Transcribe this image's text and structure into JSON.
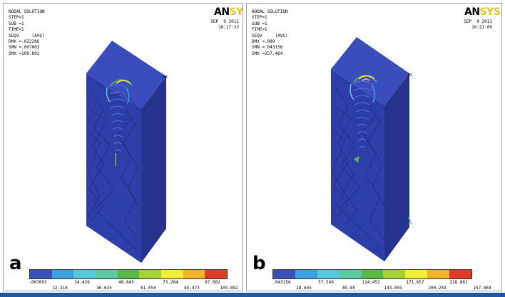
{
  "panels": [
    {
      "letter": "a",
      "title": "NODAL SOLUTION",
      "step": "STEP=1",
      "sub": "SUB =1",
      "time": "TIME=1",
      "seqv": "SEQV     (AVG)",
      "dmx": "DMX =.022286",
      "smn": "SMN =.007003",
      "smx": "SMX =109.892",
      "date": "SEP  9 2011",
      "clock": "16:17:33",
      "mx_label": "MX",
      "logo_an": "AN",
      "logo_sys": "SYS",
      "legend_top": [
        ".007003",
        "24.426",
        "48.845",
        "73.264",
        "97.682"
      ],
      "legend_bottom": [
        "12.216",
        "36.635",
        "61.054",
        "85.473",
        "109.892"
      ]
    },
    {
      "letter": "b",
      "title": "NODAL SOLUTION",
      "step": "STEP=1",
      "sub": "SUB =1",
      "time": "TIME=1",
      "seqv": "SEQV     (AVG)",
      "dmx": "DMX =.089",
      "smn": "SMN =.043156",
      "smx": "SMX =257.464",
      "date": "SEP  9 2011",
      "clock": "16:21:09",
      "mx_label": "MX",
      "logo_an": "AN",
      "logo_sys": "SYS",
      "legend_top": [
        ".043156",
        "57.248",
        "114.452",
        "171.657",
        "228.861"
      ],
      "legend_bottom": [
        "28.645",
        "85.85",
        "143.055",
        "200.259",
        "257.464"
      ]
    }
  ],
  "legend_colors": [
    "#3a4fb8",
    "#3aa0e0",
    "#57c8d8",
    "#5cc9a0",
    "#58b848",
    "#a6d038",
    "#f2ef3a",
    "#f4b233",
    "#e03a28"
  ],
  "model_colors": {
    "front": "#2e3ea8",
    "side": "#26358f",
    "top": "#3b4cbc",
    "mesh": "#1a2470"
  }
}
